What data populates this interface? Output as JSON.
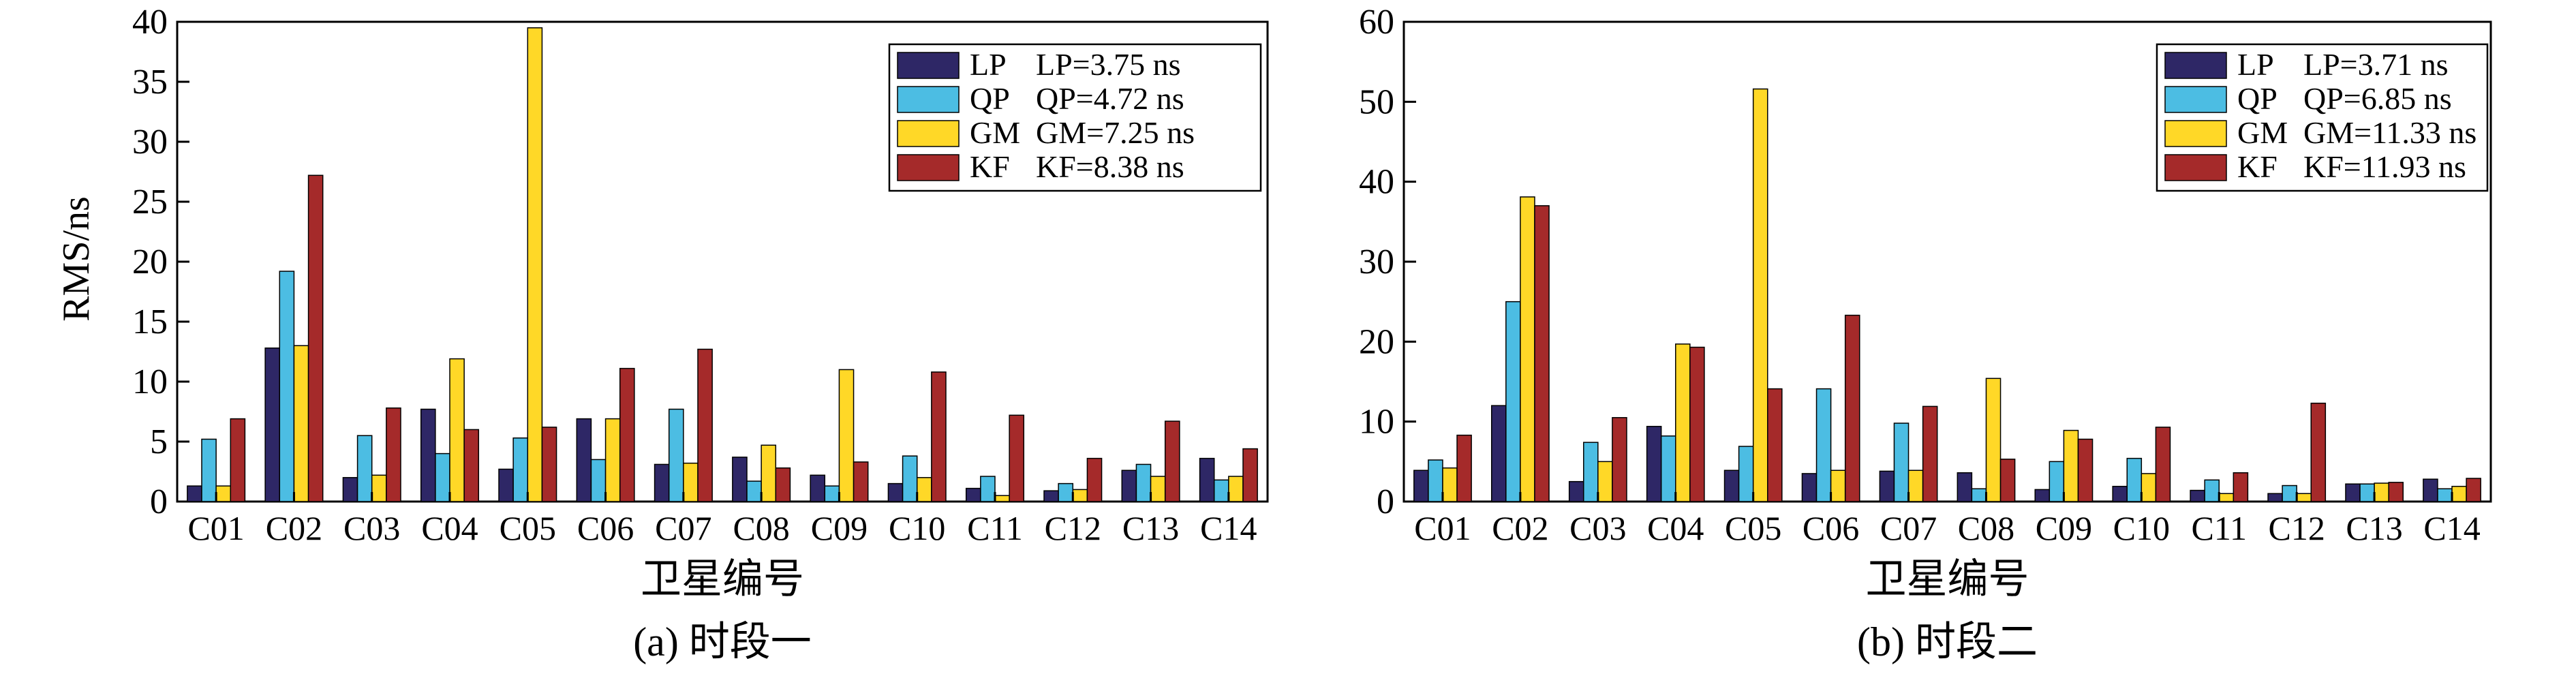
{
  "colors": {
    "LP": "#2e2766",
    "QP": "#4cbde3",
    "GM": "#ffd827",
    "KF": "#a52a2a"
  },
  "chart_data": [
    {
      "type": "bar",
      "caption": "(a) 时段一",
      "xlabel": "卫星编号",
      "ylabel": "RMS/ns",
      "ylim": [
        0,
        40
      ],
      "yticks": [
        0,
        5,
        10,
        15,
        20,
        25,
        30,
        35,
        40
      ],
      "legend_position": "top-right",
      "categories": [
        "C01",
        "C02",
        "C03",
        "C04",
        "C05",
        "C06",
        "C07",
        "C08",
        "C09",
        "C10",
        "C11",
        "C12",
        "C13",
        "C14"
      ],
      "series": [
        {
          "name": "LP",
          "legend_value": "LP=3.75 ns",
          "values": [
            1.3,
            12.8,
            2.0,
            7.7,
            2.7,
            6.9,
            3.1,
            3.7,
            2.2,
            1.5,
            1.1,
            0.9,
            2.6,
            3.6
          ]
        },
        {
          "name": "QP",
          "legend_value": "QP=4.72 ns",
          "values": [
            5.2,
            19.2,
            5.5,
            4.0,
            5.3,
            3.5,
            7.7,
            1.7,
            1.3,
            3.8,
            2.1,
            1.5,
            3.1,
            1.8
          ]
        },
        {
          "name": "GM",
          "legend_value": "GM=7.25 ns",
          "values": [
            1.3,
            13.0,
            2.2,
            11.9,
            39.5,
            6.9,
            3.2,
            4.7,
            11.0,
            2.0,
            0.5,
            1.0,
            2.1,
            2.1
          ]
        },
        {
          "name": "KF",
          "legend_value": "KF=8.38 ns",
          "values": [
            6.9,
            27.2,
            7.8,
            6.0,
            6.2,
            11.1,
            12.7,
            2.8,
            3.3,
            10.8,
            7.2,
            3.6,
            6.7,
            4.4
          ]
        }
      ]
    },
    {
      "type": "bar",
      "caption": "(b) 时段二",
      "xlabel": "卫星编号",
      "ylabel": "",
      "ylim": [
        0,
        60
      ],
      "yticks": [
        0,
        10,
        20,
        30,
        40,
        50,
        60
      ],
      "legend_position": "top-right",
      "categories": [
        "C01",
        "C02",
        "C03",
        "C04",
        "C05",
        "C06",
        "C07",
        "C08",
        "C09",
        "C10",
        "C11",
        "C12",
        "C13",
        "C14"
      ],
      "series": [
        {
          "name": "LP",
          "legend_value": "LP=3.71 ns",
          "values": [
            3.9,
            12.0,
            2.5,
            9.4,
            3.9,
            3.5,
            3.8,
            3.6,
            1.5,
            1.9,
            1.4,
            1.0,
            2.2,
            2.8
          ]
        },
        {
          "name": "QP",
          "legend_value": "QP=6.85 ns",
          "values": [
            5.2,
            25.0,
            7.4,
            8.2,
            6.9,
            14.1,
            9.8,
            1.6,
            5.0,
            5.4,
            2.7,
            2.0,
            2.2,
            1.6
          ]
        },
        {
          "name": "GM",
          "legend_value": "GM=11.33 ns",
          "values": [
            4.2,
            38.1,
            5.0,
            19.7,
            51.6,
            3.9,
            3.9,
            15.4,
            8.9,
            3.5,
            1.0,
            1.0,
            2.3,
            1.9
          ]
        },
        {
          "name": "KF",
          "legend_value": "KF=11.93 ns",
          "values": [
            8.3,
            37.0,
            10.5,
            19.3,
            14.1,
            23.3,
            11.9,
            5.3,
            7.8,
            9.3,
            3.6,
            12.3,
            2.4,
            2.9
          ]
        }
      ]
    }
  ]
}
